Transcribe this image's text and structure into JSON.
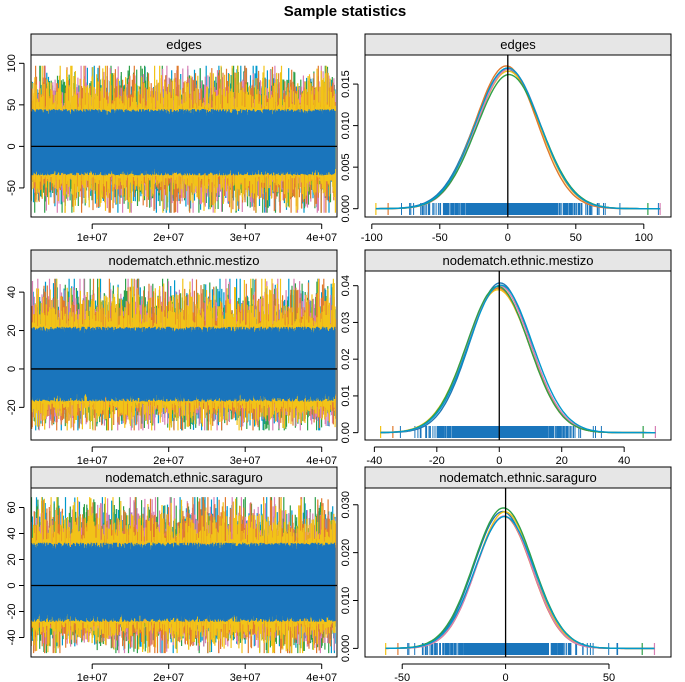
{
  "title": "Sample statistics",
  "colors": [
    "#1f77b4",
    "#f2c318",
    "#e07a2e",
    "#d87fb5",
    "#2fa04a",
    "#0099cc"
  ],
  "trace_color": "#1a75bc",
  "strip_fill": "#e6e6e6",
  "chart_data": [
    {
      "type": "line",
      "kind": "trace",
      "strip_label": "edges",
      "x_ticks": [
        "1e+07",
        "2e+07",
        "3e+07",
        "4e+07"
      ],
      "x_tick_values": [
        10000000,
        20000000,
        30000000,
        40000000
      ],
      "xlim": [
        2000000,
        42000000
      ],
      "y_ticks": [
        "-50",
        "0",
        "50",
        "100"
      ],
      "y_tick_values": [
        -50,
        0,
        50,
        100
      ],
      "ylim": [
        -85,
        110
      ],
      "band": {
        "low_p": -35,
        "high_p": 45,
        "min": -80,
        "max": 97
      },
      "reference_line": 0
    },
    {
      "type": "line",
      "kind": "density",
      "strip_label": "edges",
      "x_ticks": [
        "-100",
        "-50",
        "0",
        "50",
        "100"
      ],
      "x_tick_values": [
        -100,
        -50,
        0,
        50,
        100
      ],
      "xlim": [
        -105,
        120
      ],
      "y_ticks": [
        "0.000",
        "0.005",
        "0.010",
        "0.015"
      ],
      "y_tick_values": [
        0,
        0.005,
        0.01,
        0.015
      ],
      "ylim": [
        -0.001,
        0.0185
      ],
      "peak": 0.0168,
      "sd": 23.5,
      "mean": 0,
      "rug_range": [
        -97,
        112
      ],
      "reference_line": 0
    },
    {
      "type": "line",
      "kind": "trace",
      "strip_label": "nodematch.ethnic.mestizo",
      "x_ticks": [
        "1e+07",
        "2e+07",
        "3e+07",
        "4e+07"
      ],
      "x_tick_values": [
        10000000,
        20000000,
        30000000,
        40000000
      ],
      "xlim": [
        2000000,
        42000000
      ],
      "y_ticks": [
        "-20",
        "0",
        "20",
        "40"
      ],
      "y_tick_values": [
        -20,
        0,
        20,
        40
      ],
      "ylim": [
        -37,
        51
      ],
      "band": {
        "low_p": -17,
        "high_p": 22,
        "min": -32,
        "max": 47
      },
      "reference_line": 0
    },
    {
      "type": "line",
      "kind": "density",
      "strip_label": "nodematch.ethnic.mestizo",
      "x_ticks": [
        "-40",
        "-20",
        "0",
        "20",
        "40"
      ],
      "x_tick_values": [
        -40,
        -20,
        0,
        20,
        40
      ],
      "xlim": [
        -43,
        55
      ],
      "y_ticks": [
        "0.00",
        "0.01",
        "0.02",
        "0.03",
        "0.04"
      ],
      "y_tick_values": [
        0,
        0.01,
        0.02,
        0.03,
        0.04
      ],
      "ylim": [
        -0.002,
        0.044
      ],
      "peak": 0.0405,
      "sd": 9.8,
      "mean": 0,
      "rug_range": [
        -38,
        50
      ],
      "reference_line": 0
    },
    {
      "type": "line",
      "kind": "trace",
      "strip_label": "nodematch.ethnic.saraguro",
      "x_ticks": [
        "1e+07",
        "2e+07",
        "3e+07",
        "4e+07"
      ],
      "x_tick_values": [
        10000000,
        20000000,
        30000000,
        40000000
      ],
      "xlim": [
        2000000,
        42000000
      ],
      "y_ticks": [
        "-40",
        "-20",
        "0",
        "20",
        "40",
        "60"
      ],
      "y_tick_values": [
        -40,
        -20,
        0,
        20,
        40,
        60
      ],
      "ylim": [
        -55,
        75
      ],
      "band": {
        "low_p": -28,
        "high_p": 33,
        "min": -52,
        "max": 68
      },
      "reference_line": 0
    },
    {
      "type": "line",
      "kind": "density",
      "strip_label": "nodematch.ethnic.saraguro",
      "x_ticks": [
        "-50",
        "0",
        "50"
      ],
      "x_tick_values": [
        -50,
        0,
        50
      ],
      "xlim": [
        -68,
        80
      ],
      "y_ticks": [
        "0.000",
        "0.010",
        "0.020",
        "0.030"
      ],
      "y_tick_values": [
        0,
        0.01,
        0.02,
        0.03
      ],
      "ylim": [
        -0.0018,
        0.0335
      ],
      "peak": 0.0285,
      "sd": 14.0,
      "mean": -1,
      "rug_range": [
        -58,
        72
      ],
      "reference_line": 0
    }
  ]
}
